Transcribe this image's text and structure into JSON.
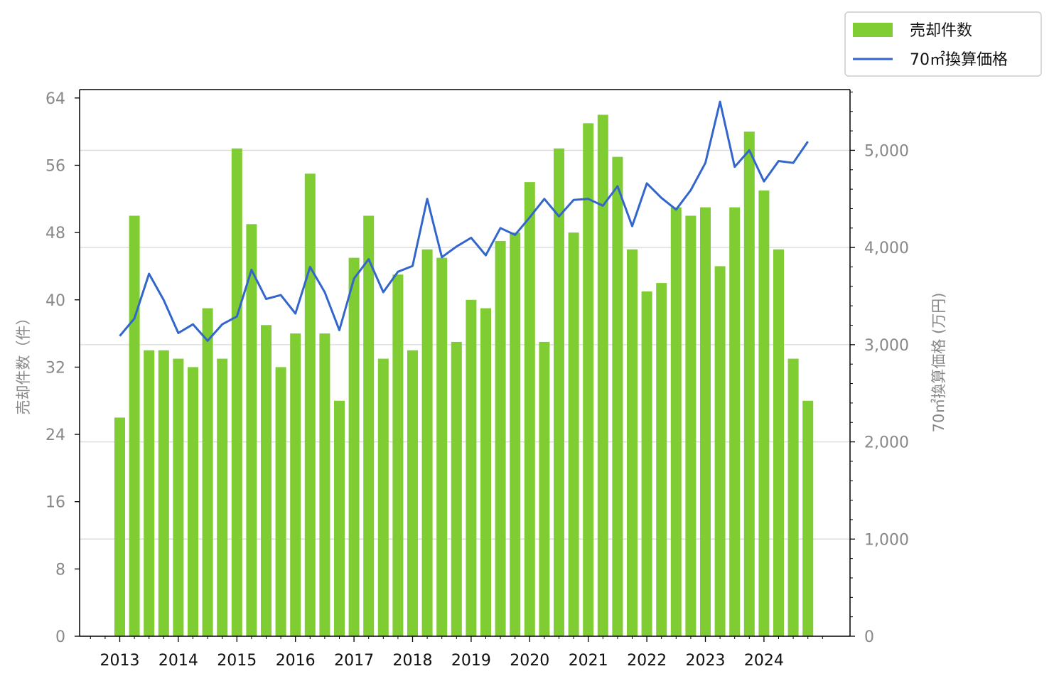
{
  "chart_data": {
    "type": "bar",
    "x": [
      "2013 Q1",
      "2013 Q2",
      "2013 Q3",
      "2013 Q4",
      "2014 Q1",
      "2014 Q2",
      "2014 Q3",
      "2014 Q4",
      "2015 Q1",
      "2015 Q2",
      "2015 Q3",
      "2015 Q4",
      "2016 Q1",
      "2016 Q2",
      "2016 Q3",
      "2016 Q4",
      "2017 Q1",
      "2017 Q2",
      "2017 Q3",
      "2017 Q4",
      "2018 Q1",
      "2018 Q2",
      "2018 Q3",
      "2018 Q4",
      "2019 Q1",
      "2019 Q2",
      "2019 Q3",
      "2019 Q4",
      "2020 Q1",
      "2020 Q2",
      "2020 Q3",
      "2020 Q4",
      "2021 Q1",
      "2021 Q2",
      "2021 Q3",
      "2021 Q4",
      "2022 Q1",
      "2022 Q2",
      "2022 Q3",
      "2022 Q4",
      "2023 Q1",
      "2023 Q2",
      "2023 Q3",
      "2023 Q4",
      "2024 Q1",
      "2024 Q2",
      "2024 Q3",
      "2024 Q4"
    ],
    "x_tick_labels": [
      "2013",
      "2014",
      "2015",
      "2016",
      "2017",
      "2018",
      "2019",
      "2020",
      "2021",
      "2022",
      "2023",
      "2024"
    ],
    "series": [
      {
        "name": "売却件数",
        "type": "bar",
        "axis": "left",
        "color": "#80cc33",
        "values": [
          26,
          50,
          34,
          34,
          33,
          32,
          39,
          33,
          58,
          49,
          37,
          32,
          36,
          55,
          36,
          28,
          45,
          50,
          33,
          43,
          34,
          46,
          45,
          35,
          40,
          39,
          47,
          48,
          54,
          35,
          58,
          48,
          61,
          62,
          57,
          46,
          41,
          42,
          51,
          50,
          51,
          44,
          51,
          60,
          53,
          46,
          33,
          28
        ]
      },
      {
        "name": "70㎡換算価格",
        "type": "line",
        "axis": "right",
        "color": "#3366cc",
        "values": [
          3090,
          3270,
          3730,
          3460,
          3120,
          3210,
          3040,
          3210,
          3290,
          3770,
          3470,
          3510,
          3320,
          3800,
          3540,
          3150,
          3680,
          3880,
          3540,
          3750,
          3810,
          4500,
          3900,
          4010,
          4100,
          3920,
          4200,
          4130,
          4310,
          4500,
          4320,
          4490,
          4500,
          4430,
          4630,
          4220,
          4660,
          4510,
          4390,
          4590,
          4870,
          5500,
          4830,
          5000,
          4680,
          4890,
          4870,
          5090
        ]
      }
    ],
    "ylabel_left": "売却件数（件）",
    "ylabel_right": "70㎡換算価格 (万円)",
    "ylim_left": [
      0,
      65
    ],
    "yticks_left": [
      "0",
      "8",
      "16",
      "24",
      "32",
      "40",
      "48",
      "56",
      "64"
    ],
    "ylim_right": [
      0,
      5625
    ],
    "yticks_right": [
      "0",
      "1,000",
      "2,000",
      "3,000",
      "4,000",
      "5,000"
    ],
    "grid": "horizontal, right axis",
    "legend": "top-right, outside plot"
  }
}
